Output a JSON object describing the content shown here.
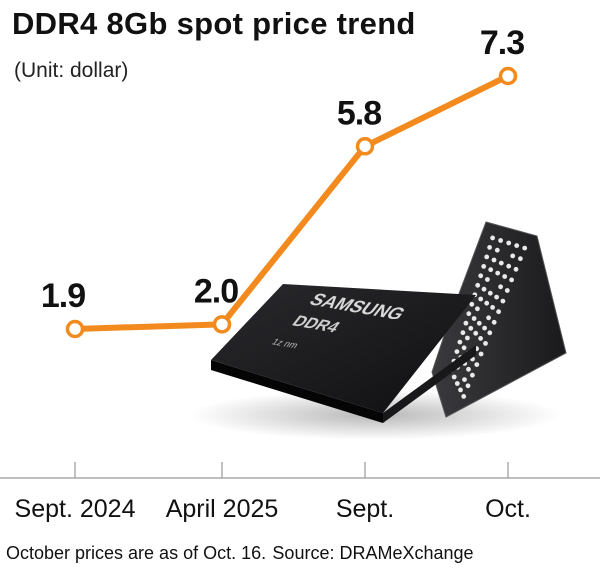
{
  "title": "DDR4 8Gb spot price trend",
  "unit_label": "(Unit: dollar)",
  "footer": {
    "note": "October prices are as of Oct. 16.",
    "source": "Source: DRAMeXchange"
  },
  "chip_image": {
    "brand": "SAMSUNG",
    "model": "DDR4",
    "process": "1z nm"
  },
  "colors": {
    "line": "#f28a1e",
    "chip": "#1b1b1d",
    "axis": "#999999"
  },
  "chart_data": {
    "type": "line",
    "categories": [
      "Sept. 2024",
      "April 2025",
      "Sept.",
      "Oct."
    ],
    "series": [
      {
        "name": "DDR4 8Gb spot price",
        "values": [
          1.9,
          2.0,
          5.8,
          7.3
        ],
        "labels": [
          "1.9",
          "2.0",
          "5.8",
          "7.3"
        ]
      }
    ],
    "title": "DDR4 8Gb spot price trend",
    "xlabel": "",
    "ylabel": "",
    "ylim": [
      0,
      8
    ],
    "grid": false
  }
}
